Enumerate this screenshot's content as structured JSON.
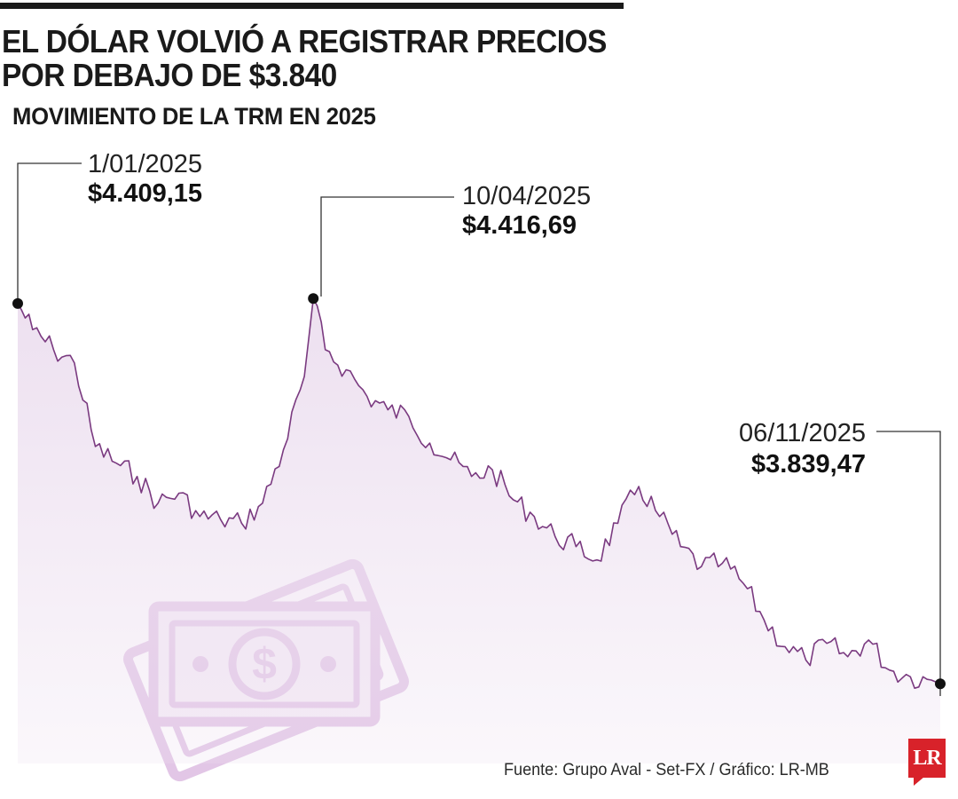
{
  "header": {
    "title_line1": "EL DÓLAR VOLVIÓ A REGISTRAR PRECIOS",
    "title_line2": "POR DEBAJO DE $3.840",
    "subtitle": "MOVIMIENTO DE LA TRM EN 2025"
  },
  "footer": {
    "source": "Fuente: Grupo Aval - Set-FX / Gráfico: LR-MB",
    "logo_text": "LR"
  },
  "colors": {
    "line": "#7a3a80",
    "area": "#ede0f0",
    "money_icon": "#e2c6e6",
    "accent_logo": "#d8222a"
  },
  "icons": {
    "background": "money-bills-icon",
    "logo": "lr-logo"
  },
  "chart_data": {
    "type": "area",
    "title": "MOVIMIENTO DE LA TRM EN 2025",
    "xlabel": "",
    "ylabel": "",
    "grid": false,
    "legend": "none",
    "x_range": [
      "2025-01-01",
      "2025-11-06"
    ],
    "ylim": [
      3720,
      4425
    ],
    "series": [
      {
        "values": [
          [
            "2025-01-01",
            4409.15
          ],
          [
            "2025-01-06",
            4370
          ],
          [
            "2025-01-13",
            4340
          ],
          [
            "2025-01-20",
            4320
          ],
          [
            "2025-01-27",
            4195
          ],
          [
            "2025-02-03",
            4170
          ],
          [
            "2025-02-10",
            4150
          ],
          [
            "2025-02-17",
            4110
          ],
          [
            "2025-02-24",
            4125
          ],
          [
            "2025-03-03",
            4090
          ],
          [
            "2025-03-10",
            4085
          ],
          [
            "2025-03-17",
            4080
          ],
          [
            "2025-03-24",
            4110
          ],
          [
            "2025-03-31",
            4190
          ],
          [
            "2025-04-07",
            4300
          ],
          [
            "2025-04-10",
            4416.69
          ],
          [
            "2025-04-14",
            4340
          ],
          [
            "2025-04-21",
            4310
          ],
          [
            "2025-04-28",
            4270
          ],
          [
            "2025-05-05",
            4250
          ],
          [
            "2025-05-12",
            4240
          ],
          [
            "2025-05-19",
            4200
          ],
          [
            "2025-05-26",
            4175
          ],
          [
            "2025-06-02",
            4150
          ],
          [
            "2025-06-09",
            4160
          ],
          [
            "2025-06-16",
            4115
          ],
          [
            "2025-06-23",
            4090
          ],
          [
            "2025-06-30",
            4060
          ],
          [
            "2025-07-07",
            4045
          ],
          [
            "2025-07-14",
            4025
          ],
          [
            "2025-07-21",
            4080
          ],
          [
            "2025-07-28",
            4135
          ],
          [
            "2025-08-04",
            4090
          ],
          [
            "2025-08-11",
            4045
          ],
          [
            "2025-08-18",
            4015
          ],
          [
            "2025-08-25",
            4020
          ],
          [
            "2025-09-01",
            3990
          ],
          [
            "2025-09-08",
            3935
          ],
          [
            "2025-09-15",
            3895
          ],
          [
            "2025-09-22",
            3875
          ],
          [
            "2025-09-29",
            3900
          ],
          [
            "2025-10-06",
            3880
          ],
          [
            "2025-10-13",
            3905
          ],
          [
            "2025-10-20",
            3860
          ],
          [
            "2025-10-27",
            3850
          ],
          [
            "2025-11-03",
            3845
          ],
          [
            "2025-11-06",
            3839.47
          ]
        ]
      }
    ],
    "annotations": [
      {
        "date": "1/01/2025",
        "value": "$4.409,15"
      },
      {
        "date": "10/04/2025",
        "value": "$4.416,69"
      },
      {
        "date": "06/11/2025",
        "value": "$3.839,47"
      }
    ]
  }
}
